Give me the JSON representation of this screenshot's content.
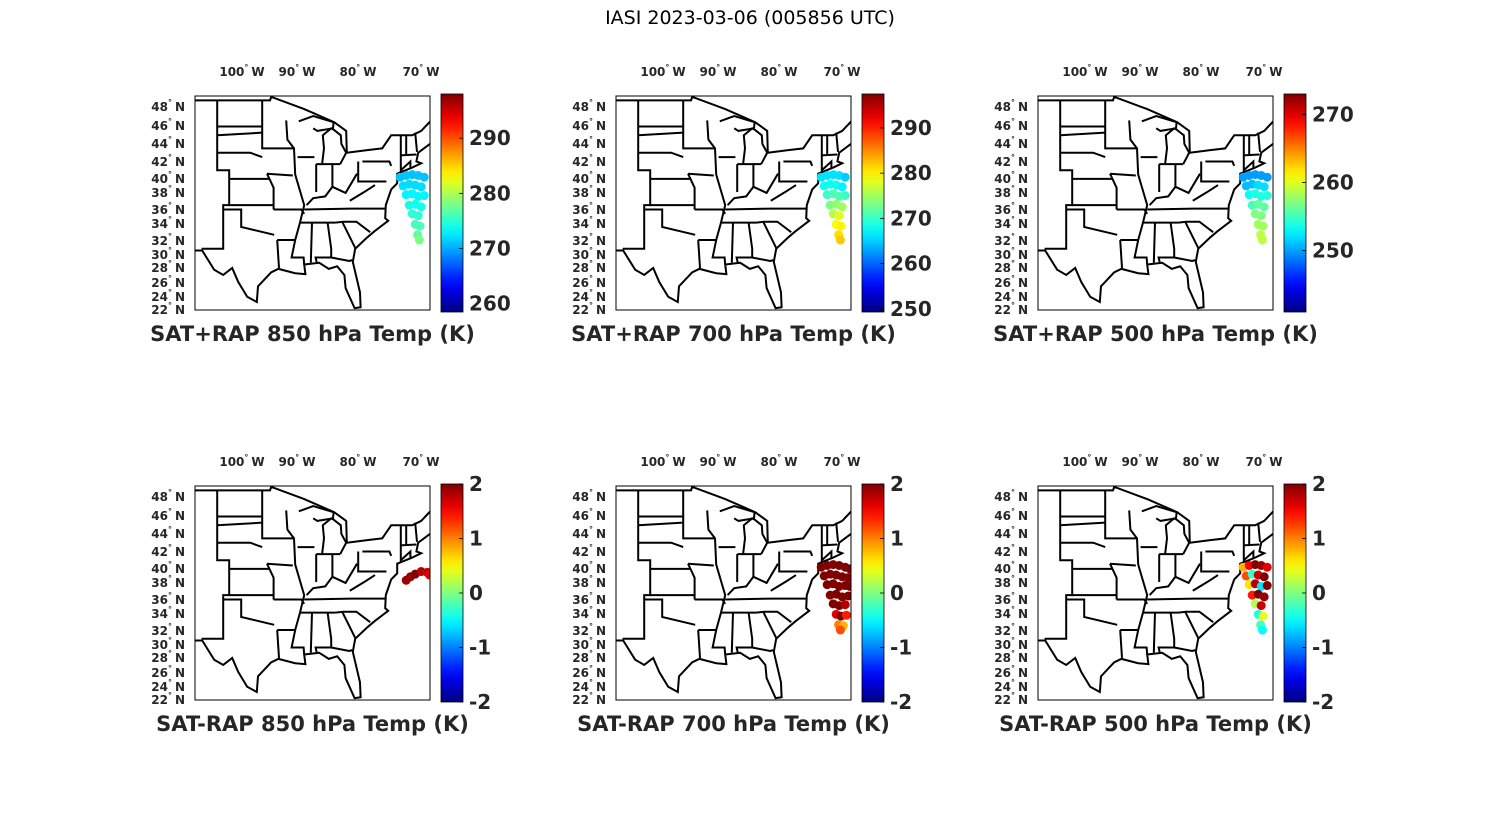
{
  "title": "IASI 2023-03-06 (005856 UTC)",
  "lon_ticks": [
    "100",
    "90",
    "80",
    "70"
  ],
  "lon_suffix": "W",
  "lat_ticks": [
    "48",
    "46",
    "44",
    "42",
    "40",
    "38",
    "36",
    "34",
    "32",
    "30",
    "28",
    "26",
    "24",
    "22"
  ],
  "lat_suffix": "N",
  "degree_symbol": "°",
  "colormap": "jet",
  "chart_data": [
    {
      "type": "scatter-map",
      "title": "SAT+RAP 850 hPa Temp (K)",
      "clim": [
        258.5,
        298
      ],
      "colorbar_ticks": [
        "260",
        "270",
        "280",
        "290"
      ],
      "points": [
        [
          -73.5,
          40.2,
          271
        ],
        [
          -72.5,
          40.4,
          271
        ],
        [
          -71.5,
          40.5,
          271
        ],
        [
          -70.5,
          40.4,
          271
        ],
        [
          -69.5,
          40.2,
          271
        ],
        [
          -73,
          39.2,
          272
        ],
        [
          -72,
          39.4,
          272
        ],
        [
          -71,
          39.3,
          272
        ],
        [
          -70,
          39.1,
          272
        ],
        [
          -72.5,
          38.2,
          273
        ],
        [
          -71.5,
          38.3,
          273
        ],
        [
          -70.5,
          38,
          273
        ],
        [
          -69.5,
          38.1,
          273
        ],
        [
          -72,
          37,
          274
        ],
        [
          -71,
          37.1,
          274
        ],
        [
          -70,
          36.8,
          274
        ],
        [
          -71.5,
          36,
          275
        ],
        [
          -70.5,
          35.8,
          275
        ],
        [
          -71,
          34.8,
          276
        ],
        [
          -70.2,
          34.6,
          276
        ],
        [
          -70.6,
          33.6,
          277
        ],
        [
          -70.3,
          33,
          278
        ]
      ]
    },
    {
      "type": "scatter-map",
      "title": "SAT+RAP 700 hPa Temp (K)",
      "clim": [
        249.3,
        297.5
      ],
      "colorbar_ticks": [
        "250",
        "260",
        "270",
        "280",
        "290"
      ],
      "points": [
        [
          -73.5,
          40.2,
          266
        ],
        [
          -72.5,
          40.4,
          266
        ],
        [
          -71.5,
          40.5,
          266
        ],
        [
          -70.5,
          40.4,
          266
        ],
        [
          -69.5,
          40.2,
          265
        ],
        [
          -73,
          39.2,
          268
        ],
        [
          -72,
          39.4,
          268
        ],
        [
          -71,
          39.3,
          268
        ],
        [
          -70,
          39.1,
          267
        ],
        [
          -72.5,
          38.2,
          270
        ],
        [
          -71.5,
          38.3,
          271
        ],
        [
          -70.5,
          38,
          271
        ],
        [
          -69.5,
          38.1,
          270
        ],
        [
          -72,
          37,
          273
        ],
        [
          -71,
          37.1,
          274
        ],
        [
          -70,
          36.8,
          275
        ],
        [
          -71.5,
          36,
          276
        ],
        [
          -70.5,
          35.8,
          278
        ],
        [
          -71,
          34.8,
          279
        ],
        [
          -70.2,
          34.6,
          280
        ],
        [
          -70.6,
          33.6,
          281
        ],
        [
          -70.3,
          33,
          282
        ]
      ]
    },
    {
      "type": "scatter-map",
      "title": "SAT+RAP 500 hPa Temp (K)",
      "clim": [
        241,
        273
      ],
      "colorbar_ticks": [
        "250",
        "260",
        "270"
      ],
      "points": [
        [
          -73.5,
          40.2,
          250
        ],
        [
          -72.5,
          40.4,
          250
        ],
        [
          -71.5,
          40.5,
          250
        ],
        [
          -70.5,
          40.4,
          250
        ],
        [
          -69.5,
          40.2,
          250
        ],
        [
          -73,
          39.2,
          251
        ],
        [
          -72,
          39.4,
          251
        ],
        [
          -71,
          39.3,
          252
        ],
        [
          -70,
          39.1,
          252
        ],
        [
          -72.5,
          38.2,
          253
        ],
        [
          -71.5,
          38.3,
          254
        ],
        [
          -70.5,
          38,
          254
        ],
        [
          -69.5,
          38.1,
          254
        ],
        [
          -72,
          37,
          255
        ],
        [
          -71,
          37.1,
          256
        ],
        [
          -70,
          36.8,
          256
        ],
        [
          -71.5,
          36,
          257
        ],
        [
          -70.5,
          35.8,
          257
        ],
        [
          -71,
          34.8,
          258
        ],
        [
          -70.2,
          34.6,
          258
        ],
        [
          -70.6,
          33.6,
          259
        ],
        [
          -70.3,
          33,
          259
        ]
      ]
    },
    {
      "type": "scatter-map",
      "title": "SAT-RAP 850 hPa Temp (K)",
      "clim": [
        -2,
        2
      ],
      "colorbar_ticks": [
        "-2",
        "-1",
        "0",
        "1",
        "2"
      ],
      "points": [
        [
          -72.5,
          38.7,
          1.9
        ],
        [
          -71.8,
          39.1,
          1.9
        ],
        [
          -71,
          39.4,
          2
        ],
        [
          -70,
          39.7,
          1.8
        ],
        [
          -69,
          39.6,
          1.7
        ],
        [
          -68.6,
          39.3,
          1.6
        ]
      ]
    },
    {
      "type": "scatter-map",
      "title": "SAT-RAP 700 hPa Temp (K)",
      "clim": [
        -2,
        2
      ],
      "colorbar_ticks": [
        "-2",
        "-1",
        "0",
        "1",
        "2"
      ],
      "points": [
        [
          -73.5,
          40.2,
          2
        ],
        [
          -72.5,
          40.4,
          2
        ],
        [
          -71.5,
          40.5,
          2
        ],
        [
          -70.5,
          40.4,
          2
        ],
        [
          -69.5,
          40.2,
          2
        ],
        [
          -68.7,
          40,
          2
        ],
        [
          -73,
          39.2,
          2
        ],
        [
          -72,
          39.4,
          2
        ],
        [
          -71,
          39.3,
          2
        ],
        [
          -70,
          39.1,
          2
        ],
        [
          -69,
          39,
          2
        ],
        [
          -72.5,
          38.2,
          2
        ],
        [
          -71.5,
          38.3,
          2
        ],
        [
          -70.5,
          38,
          2
        ],
        [
          -69.5,
          38.1,
          2
        ],
        [
          -68.7,
          38,
          2
        ],
        [
          -72,
          37,
          2
        ],
        [
          -71,
          37.1,
          2
        ],
        [
          -70,
          36.8,
          2
        ],
        [
          -69,
          36.9,
          2
        ],
        [
          -71.5,
          36,
          2
        ],
        [
          -70.5,
          35.8,
          2
        ],
        [
          -69.5,
          35.9,
          1.8
        ],
        [
          -71,
          34.8,
          1.6
        ],
        [
          -70.2,
          34.6,
          2
        ],
        [
          -69.3,
          34.7,
          1.4
        ],
        [
          -70.6,
          33.6,
          1
        ],
        [
          -69.8,
          33.5,
          0.8
        ],
        [
          -70.3,
          33,
          1.2
        ]
      ]
    },
    {
      "type": "scatter-map",
      "title": "SAT-RAP 500 hPa Temp (K)",
      "clim": [
        -2,
        2
      ],
      "colorbar_ticks": [
        "-2",
        "-1",
        "0",
        "1",
        "2"
      ],
      "points": [
        [
          -73.5,
          40.2,
          0.8
        ],
        [
          -72.5,
          40.4,
          1.5
        ],
        [
          -71.5,
          40.5,
          2
        ],
        [
          -70.5,
          40.4,
          1.9
        ],
        [
          -69.5,
          40.2,
          1.6
        ],
        [
          -73,
          39.2,
          1.2
        ],
        [
          -72,
          39.4,
          -0.3
        ],
        [
          -71,
          39.3,
          1.7
        ],
        [
          -70,
          39.1,
          2
        ],
        [
          -72.5,
          38.2,
          0.6
        ],
        [
          -71.5,
          38.3,
          1.8
        ],
        [
          -70.5,
          38,
          -0.6
        ],
        [
          -69.5,
          38.1,
          2
        ],
        [
          -72,
          37,
          1.4
        ],
        [
          -71,
          37.1,
          2
        ],
        [
          -70,
          36.8,
          1.9
        ],
        [
          -71.5,
          36,
          0.2
        ],
        [
          -70.5,
          35.8,
          1.7
        ],
        [
          -71,
          34.8,
          -0.4
        ],
        [
          -70.2,
          34.6,
          0.4
        ],
        [
          -70.6,
          33.6,
          -0.2
        ],
        [
          -70.3,
          33,
          -0.5
        ]
      ]
    }
  ]
}
